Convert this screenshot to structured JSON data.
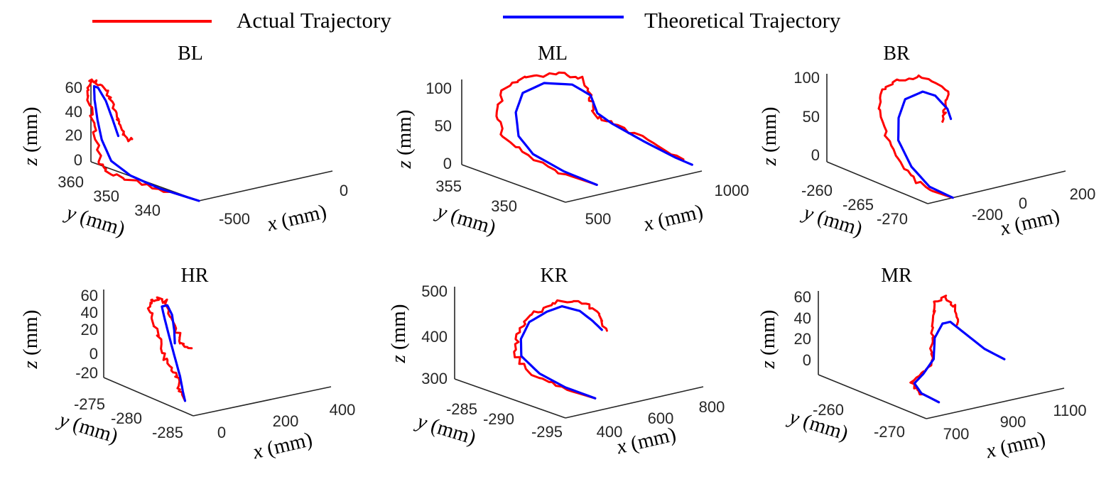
{
  "legend": {
    "actual_label": "Actual Trajectory",
    "theoretical_label": "Theoretical Trajectory",
    "actual_color": "#ff0000",
    "theoretical_color": "#0000ff"
  },
  "chart_data": [
    {
      "type": "line3d",
      "title": "BL",
      "xlabel_var": "x",
      "xlabel_unit": " (mm)",
      "ylabel_var": "y",
      "ylabel_unit": " (mm)",
      "zlabel_var": "z",
      "zlabel_unit": " (mm)",
      "x_ticks": [
        "-500",
        "0"
      ],
      "y_ticks": [
        "360",
        "350",
        "340"
      ],
      "z_ticks": [
        "60",
        "40",
        "20",
        "0"
      ],
      "series": [
        {
          "name": "Actual Trajectory",
          "points": [
            [
              -500,
              362,
              0
            ],
            [
              -510,
              355,
              0
            ],
            [
              -520,
              348,
              0
            ],
            [
              -528,
              343,
              0
            ],
            [
              -530,
              342,
              5
            ],
            [
              -532,
              341,
              25
            ],
            [
              -534,
              340,
              45
            ],
            [
              -530,
              339,
              62
            ],
            [
              -500,
              338,
              68
            ],
            [
              -470,
              339,
              62
            ],
            [
              -455,
              340,
              50
            ],
            [
              -450,
              341,
              38
            ],
            [
              -445,
              342,
              28
            ],
            [
              -448,
              343,
              22
            ],
            [
              -430,
              343,
              22
            ]
          ]
        },
        {
          "name": "Theoretical Trajectory",
          "points": [
            [
              -500,
              362,
              0
            ],
            [
              -512,
              354,
              0
            ],
            [
              -520,
              348,
              3
            ],
            [
              -525,
              344,
              10
            ],
            [
              -527,
              342,
              25
            ],
            [
              -526,
              341,
              40
            ],
            [
              -520,
              340,
              55
            ],
            [
              -505,
              339,
              64
            ],
            [
              -490,
              339,
              62
            ],
            [
              -478,
              340,
              52
            ],
            [
              -470,
              341,
              38
            ],
            [
              -465,
              342,
              25
            ]
          ]
        }
      ]
    },
    {
      "type": "line3d",
      "title": "ML",
      "xlabel_var": "x",
      "xlabel_unit": " (mm)",
      "ylabel_var": "y",
      "ylabel_unit": " (mm)",
      "zlabel_var": "z",
      "zlabel_unit": " (mm)",
      "x_ticks": [
        "500",
        "1000"
      ],
      "y_ticks": [
        "355",
        "350"
      ],
      "z_ticks": [
        "100",
        "50",
        "0"
      ],
      "series": [
        {
          "name": "Actual Trajectory",
          "points": [
            [
              600,
              348,
              0
            ],
            [
              500,
              350,
              15
            ],
            [
              420,
              352,
              35
            ],
            [
              380,
              354,
              55
            ],
            [
              400,
              355,
              85
            ],
            [
              480,
              356,
              108
            ],
            [
              600,
              356,
              118
            ],
            [
              720,
              355,
              118
            ],
            [
              800,
              354,
              112
            ],
            [
              790,
              353,
              90
            ],
            [
              760,
              352,
              70
            ],
            [
              820,
              351,
              60
            ],
            [
              900,
              349,
              40
            ],
            [
              1000,
              347,
              15
            ]
          ]
        },
        {
          "name": "Theoretical Trajectory",
          "points": [
            [
              600,
              348,
              0
            ],
            [
              520,
              350,
              15
            ],
            [
              450,
              352,
              35
            ],
            [
              420,
              353,
              58
            ],
            [
              450,
              354,
              85
            ],
            [
              530,
              355,
              103
            ],
            [
              640,
              355,
              110
            ],
            [
              740,
              354,
              106
            ],
            [
              790,
              353,
              92
            ],
            [
              780,
              352,
              72
            ],
            [
              810,
              351,
              60
            ],
            [
              880,
              349,
              40
            ],
            [
              960,
              347,
              20
            ],
            [
              1000,
              346,
              12
            ]
          ]
        }
      ]
    },
    {
      "type": "line3d",
      "title": "BR",
      "xlabel_var": "x",
      "xlabel_unit": " (mm)",
      "ylabel_var": "y",
      "ylabel_unit": " (mm)",
      "zlabel_var": "z",
      "zlabel_unit": " (mm)",
      "x_ticks": [
        "-200",
        "0",
        "200"
      ],
      "y_ticks": [
        "-260",
        "-265",
        "-270"
      ],
      "z_ticks": [
        "100",
        "50",
        "0"
      ],
      "series": [
        {
          "name": "Actual Trajectory",
          "points": [
            [
              -200,
              -272,
              0
            ],
            [
              -240,
              -270,
              5
            ],
            [
              -270,
              -268,
              20
            ],
            [
              -280,
              -266,
              45
            ],
            [
              -260,
              -264,
              70
            ],
            [
              -200,
              -262,
              88
            ],
            [
              -120,
              -262,
              95
            ],
            [
              -30,
              -262,
              92
            ],
            [
              40,
              -263,
              72
            ],
            [
              0,
              -264,
              58
            ],
            [
              -40,
              -265,
              52
            ]
          ]
        },
        {
          "name": "Theoretical Trajectory",
          "points": [
            [
              -200,
              -272,
              0
            ],
            [
              -235,
              -270,
              8
            ],
            [
              -250,
              -268,
              25
            ],
            [
              -245,
              -266,
              48
            ],
            [
              -215,
              -265,
              68
            ],
            [
              -160,
              -264,
              82
            ],
            [
              -90,
              -264,
              86
            ],
            [
              -40,
              -264,
              78
            ],
            [
              -20,
              -265,
              65
            ],
            [
              -35,
              -266,
              58
            ]
          ]
        }
      ]
    },
    {
      "type": "line3d",
      "title": "HR",
      "xlabel_var": "x",
      "xlabel_unit": " (mm)",
      "ylabel_var": "y",
      "ylabel_unit": " (mm)",
      "zlabel_var": "z",
      "zlabel_unit": " (mm)",
      "x_ticks": [
        "0",
        "200",
        "400"
      ],
      "y_ticks": [
        "-275",
        "-280",
        "-285"
      ],
      "z_ticks": [
        "60",
        "40",
        "20",
        "0",
        "-20"
      ],
      "series": [
        {
          "name": "Actual Trajectory",
          "points": [
            [
              0,
              -284,
              -25
            ],
            [
              10,
              -283,
              -20
            ],
            [
              20,
              -282,
              -10
            ],
            [
              25,
              -281,
              0
            ],
            [
              22,
              -280,
              10
            ],
            [
              20,
              -279,
              30
            ],
            [
              22,
              -278,
              50
            ],
            [
              30,
              -277,
              62
            ],
            [
              60,
              -277,
              66
            ],
            [
              90,
              -277,
              60
            ],
            [
              110,
              -277,
              40
            ],
            [
              120,
              -278,
              20
            ],
            [
              125,
              -278,
              12
            ],
            [
              140,
              -279,
              10
            ]
          ]
        },
        {
          "name": "Theoretical Trajectory",
          "points": [
            [
              0,
              -284,
              -25
            ],
            [
              15,
              -283,
              -18
            ],
            [
              28,
              -282,
              -5
            ],
            [
              35,
              -281,
              10
            ],
            [
              38,
              -280,
              30
            ],
            [
              42,
              -279,
              50
            ],
            [
              55,
              -278,
              60
            ],
            [
              75,
              -278,
              60
            ],
            [
              92,
              -278,
              48
            ],
            [
              100,
              -278,
              30
            ],
            [
              102,
              -278,
              15
            ]
          ]
        }
      ]
    },
    {
      "type": "line3d",
      "title": "KR",
      "xlabel_var": "x",
      "xlabel_unit": " (mm)",
      "ylabel_var": "y",
      "ylabel_unit": " (mm)",
      "zlabel_var": "z",
      "zlabel_unit": " (mm)",
      "x_ticks": [
        "400",
        "600",
        "800"
      ],
      "y_ticks": [
        "-285",
        "-290",
        "-295"
      ],
      "z_ticks": [
        "500",
        "400",
        "300"
      ],
      "series": [
        {
          "name": "Actual Trajectory",
          "points": [
            [
              450,
              -296,
              300
            ],
            [
              380,
              -294,
              320
            ],
            [
              330,
              -292,
              345
            ],
            [
              320,
              -290,
              380
            ],
            [
              360,
              -289,
              415
            ],
            [
              430,
              -288,
              440
            ],
            [
              500,
              -288,
              455
            ],
            [
              570,
              -288,
              465
            ],
            [
              620,
              -289,
              458
            ],
            [
              650,
              -290,
              435
            ],
            [
              655,
              -291,
              400
            ]
          ]
        },
        {
          "name": "Theoretical Trajectory",
          "points": [
            [
              450,
              -296,
              300
            ],
            [
              395,
              -294,
              320
            ],
            [
              355,
              -292,
              345
            ],
            [
              345,
              -290,
              375
            ],
            [
              375,
              -289,
              405
            ],
            [
              440,
              -288,
              430
            ],
            [
              510,
              -288,
              445
            ],
            [
              570,
              -288,
              450
            ],
            [
              610,
              -289,
              440
            ],
            [
              630,
              -290,
              420
            ],
            [
              635,
              -291,
              405
            ]
          ]
        }
      ]
    },
    {
      "type": "line3d",
      "title": "MR",
      "xlabel_var": "x",
      "xlabel_unit": " (mm)",
      "ylabel_var": "y",
      "ylabel_unit": " (mm)",
      "zlabel_var": "z",
      "zlabel_unit": " (mm)",
      "x_ticks": [
        "700",
        "900",
        "1100"
      ],
      "y_ticks": [
        "-260",
        "-270"
      ],
      "z_ticks": [
        "60",
        "40",
        "20",
        "0"
      ],
      "series": [
        {
          "name": "Actual Trajectory",
          "points": [
            [
              720,
              -270,
              -10
            ],
            [
              700,
              -268,
              -5
            ],
            [
              720,
              -266,
              -3
            ],
            [
              780,
              -265,
              0
            ],
            [
              820,
              -265,
              10
            ],
            [
              850,
              -264,
              25
            ],
            [
              880,
              -263,
              40
            ],
            [
              910,
              -262,
              52
            ],
            [
              950,
              -262,
              58
            ],
            [
              960,
              -263,
              50
            ],
            [
              920,
              -265,
              40
            ]
          ]
        },
        {
          "name": "Theoretical Trajectory",
          "points": [
            [
              720,
              -270,
              -10
            ],
            [
              705,
              -268,
              -6
            ],
            [
              730,
              -266,
              -3
            ],
            [
              790,
              -265,
              0
            ],
            [
              830,
              -265,
              12
            ],
            [
              860,
              -264,
              28
            ],
            [
              890,
              -264,
              40
            ],
            [
              920,
              -264,
              40
            ],
            [
              950,
              -265,
              30
            ],
            [
              1000,
              -266,
              15
            ],
            [
              1050,
              -267,
              5
            ]
          ]
        }
      ]
    }
  ]
}
